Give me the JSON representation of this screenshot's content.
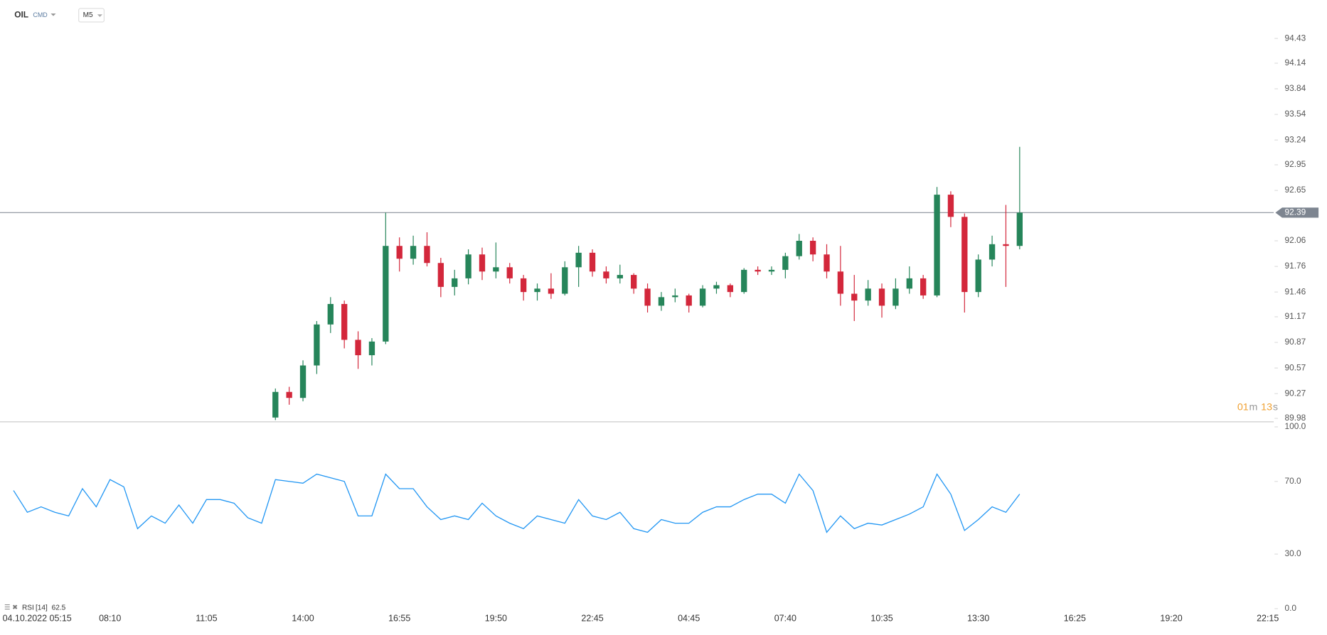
{
  "header": {
    "symbol": "OIL",
    "market": "CMD",
    "interval": "M5"
  },
  "chart_data": {
    "type": "candlestick",
    "categories": [
      "04.10.2022 05:15",
      null,
      null,
      null,
      null,
      null,
      null,
      "08:10",
      null,
      null,
      null,
      null,
      null,
      null,
      "11:05",
      null,
      null,
      null,
      null,
      null,
      null,
      "14:00",
      null,
      null,
      null,
      null,
      null,
      null,
      "16:55",
      null,
      null,
      null,
      null,
      null,
      null,
      "19:50",
      null,
      null,
      null,
      null,
      null,
      null,
      "22:45",
      null,
      null,
      null,
      null,
      null,
      null,
      "04:45",
      null,
      null,
      null,
      null,
      null,
      null,
      "07:40",
      null,
      null,
      null,
      null,
      null,
      null,
      "10:35",
      null,
      null,
      null,
      null,
      null,
      null,
      "13:30",
      null,
      null,
      null,
      null,
      null,
      null,
      "16:25",
      null,
      null,
      null,
      null,
      null,
      null,
      "19:20",
      null,
      null,
      null,
      null,
      null,
      null,
      "22:15"
    ],
    "open": [
      null,
      null,
      null,
      null,
      null,
      null,
      null,
      null,
      null,
      null,
      null,
      null,
      null,
      null,
      null,
      null,
      null,
      null,
      null,
      89.99,
      90.29,
      90.22,
      90.6,
      91.08,
      91.32,
      90.9,
      90.72,
      90.88,
      92.0,
      91.85,
      92.0,
      91.8,
      91.52,
      91.62,
      91.9,
      91.7,
      91.75,
      91.62,
      91.46,
      91.5,
      91.44,
      91.75,
      91.92,
      91.7,
      91.62,
      91.66,
      91.5,
      91.3,
      91.4,
      91.42,
      91.3,
      91.5,
      91.54,
      91.46,
      91.72,
      91.7,
      91.72,
      91.88,
      92.06,
      91.9,
      91.7,
      91.44,
      91.36,
      91.5,
      91.3,
      91.5,
      91.62,
      91.42,
      92.6,
      92.34,
      91.46,
      91.84,
      92.02,
      92.0,
      null,
      null,
      null,
      null,
      null,
      null,
      null,
      null,
      null,
      null,
      null,
      null,
      null,
      null,
      null,
      null,
      null,
      null
    ],
    "high": [
      null,
      null,
      null,
      null,
      null,
      null,
      null,
      null,
      null,
      null,
      null,
      null,
      null,
      null,
      null,
      null,
      null,
      null,
      null,
      90.33,
      90.35,
      90.66,
      91.12,
      91.4,
      91.36,
      91.0,
      90.92,
      92.39,
      92.1,
      92.12,
      92.16,
      91.86,
      91.72,
      91.96,
      91.98,
      92.04,
      91.8,
      91.66,
      91.56,
      91.68,
      91.82,
      92.0,
      91.96,
      91.76,
      91.78,
      91.68,
      91.56,
      91.46,
      91.5,
      91.44,
      91.54,
      91.58,
      91.56,
      91.74,
      91.76,
      91.76,
      91.92,
      92.14,
      92.1,
      92.02,
      92.0,
      91.66,
      91.6,
      91.56,
      91.62,
      91.76,
      91.66,
      92.69,
      92.64,
      92.38,
      91.9,
      92.12,
      92.48,
      93.16,
      null,
      null,
      null,
      null,
      null,
      null,
      null,
      null,
      null,
      null,
      null,
      null,
      null,
      null,
      null,
      null,
      null,
      null
    ],
    "low": [
      null,
      null,
      null,
      null,
      null,
      null,
      null,
      null,
      null,
      null,
      null,
      null,
      null,
      null,
      null,
      null,
      null,
      null,
      null,
      89.96,
      90.14,
      90.18,
      90.5,
      90.98,
      90.8,
      90.56,
      90.6,
      90.85,
      91.7,
      91.78,
      91.76,
      91.4,
      91.42,
      91.55,
      91.6,
      91.62,
      91.56,
      91.36,
      91.36,
      91.38,
      91.42,
      91.52,
      91.64,
      91.56,
      91.56,
      91.44,
      91.22,
      91.24,
      91.34,
      91.22,
      91.28,
      91.44,
      91.4,
      91.44,
      91.66,
      91.66,
      91.62,
      91.84,
      91.82,
      91.62,
      91.3,
      91.12,
      91.3,
      91.16,
      91.26,
      91.44,
      91.38,
      91.4,
      92.22,
      91.22,
      91.4,
      91.76,
      91.52,
      91.96,
      null,
      null,
      null,
      null,
      null,
      null,
      null,
      null,
      null,
      null,
      null,
      null,
      null,
      null,
      null,
      null,
      null,
      null
    ],
    "close": [
      null,
      null,
      null,
      null,
      null,
      null,
      null,
      null,
      null,
      null,
      null,
      null,
      null,
      null,
      null,
      null,
      null,
      null,
      null,
      90.29,
      90.22,
      90.6,
      91.08,
      91.32,
      90.9,
      90.72,
      90.88,
      92.0,
      91.85,
      92.0,
      91.8,
      91.52,
      91.62,
      91.9,
      91.7,
      91.75,
      91.62,
      91.46,
      91.5,
      91.44,
      91.75,
      91.92,
      91.7,
      91.62,
      91.66,
      91.5,
      91.3,
      91.4,
      91.42,
      91.3,
      91.5,
      91.54,
      91.46,
      91.72,
      91.7,
      91.72,
      91.88,
      92.06,
      91.9,
      91.7,
      91.44,
      91.36,
      91.5,
      91.3,
      91.5,
      91.62,
      91.42,
      92.6,
      92.34,
      91.46,
      91.84,
      92.02,
      92.0,
      92.39,
      null,
      null,
      null,
      null,
      null,
      null,
      null,
      null,
      null,
      null,
      null,
      null,
      null,
      null,
      null,
      null,
      null,
      null
    ],
    "up_color": "#26855a",
    "down_color": "#d3273b",
    "ylim": [
      89.94,
      94.88
    ],
    "yticks": [
      94.43,
      94.14,
      93.84,
      93.54,
      93.24,
      92.95,
      92.65,
      92.06,
      91.76,
      91.46,
      91.17,
      90.87,
      90.57,
      90.27,
      89.98
    ],
    "last": 92.39,
    "timer": [
      "01",
      "m",
      "13",
      "s"
    ],
    "rsi": {
      "name": "RSI",
      "period": "[14]",
      "value": 62.5,
      "color": "#2196f3",
      "values": [
        65,
        53,
        56,
        53,
        51,
        66,
        56,
        71,
        67,
        44,
        51,
        47,
        57,
        47,
        60,
        60,
        58,
        50,
        47,
        71,
        70,
        69,
        74,
        72,
        70,
        51,
        51,
        74,
        66,
        66,
        56,
        49,
        51,
        49,
        58,
        51,
        47,
        44,
        51,
        49,
        47,
        60,
        51,
        49,
        53,
        44,
        42,
        49,
        47,
        47,
        53,
        56,
        56,
        60,
        63,
        63,
        58,
        74,
        65,
        42,
        51,
        44,
        47,
        46,
        49,
        52,
        56,
        74,
        63,
        43,
        49,
        56,
        53,
        63,
        null,
        null,
        null,
        null,
        null,
        null,
        null,
        null,
        null,
        null,
        null,
        null,
        null,
        null,
        null,
        null,
        null,
        null
      ],
      "ylim": [
        0,
        100
      ],
      "yticks": [
        {
          "value": 100,
          "label": "100.0"
        },
        {
          "value": 70,
          "label": "70.0"
        },
        {
          "value": 30,
          "label": "30.0"
        },
        {
          "value": 0,
          "label": "0.0"
        }
      ]
    }
  }
}
